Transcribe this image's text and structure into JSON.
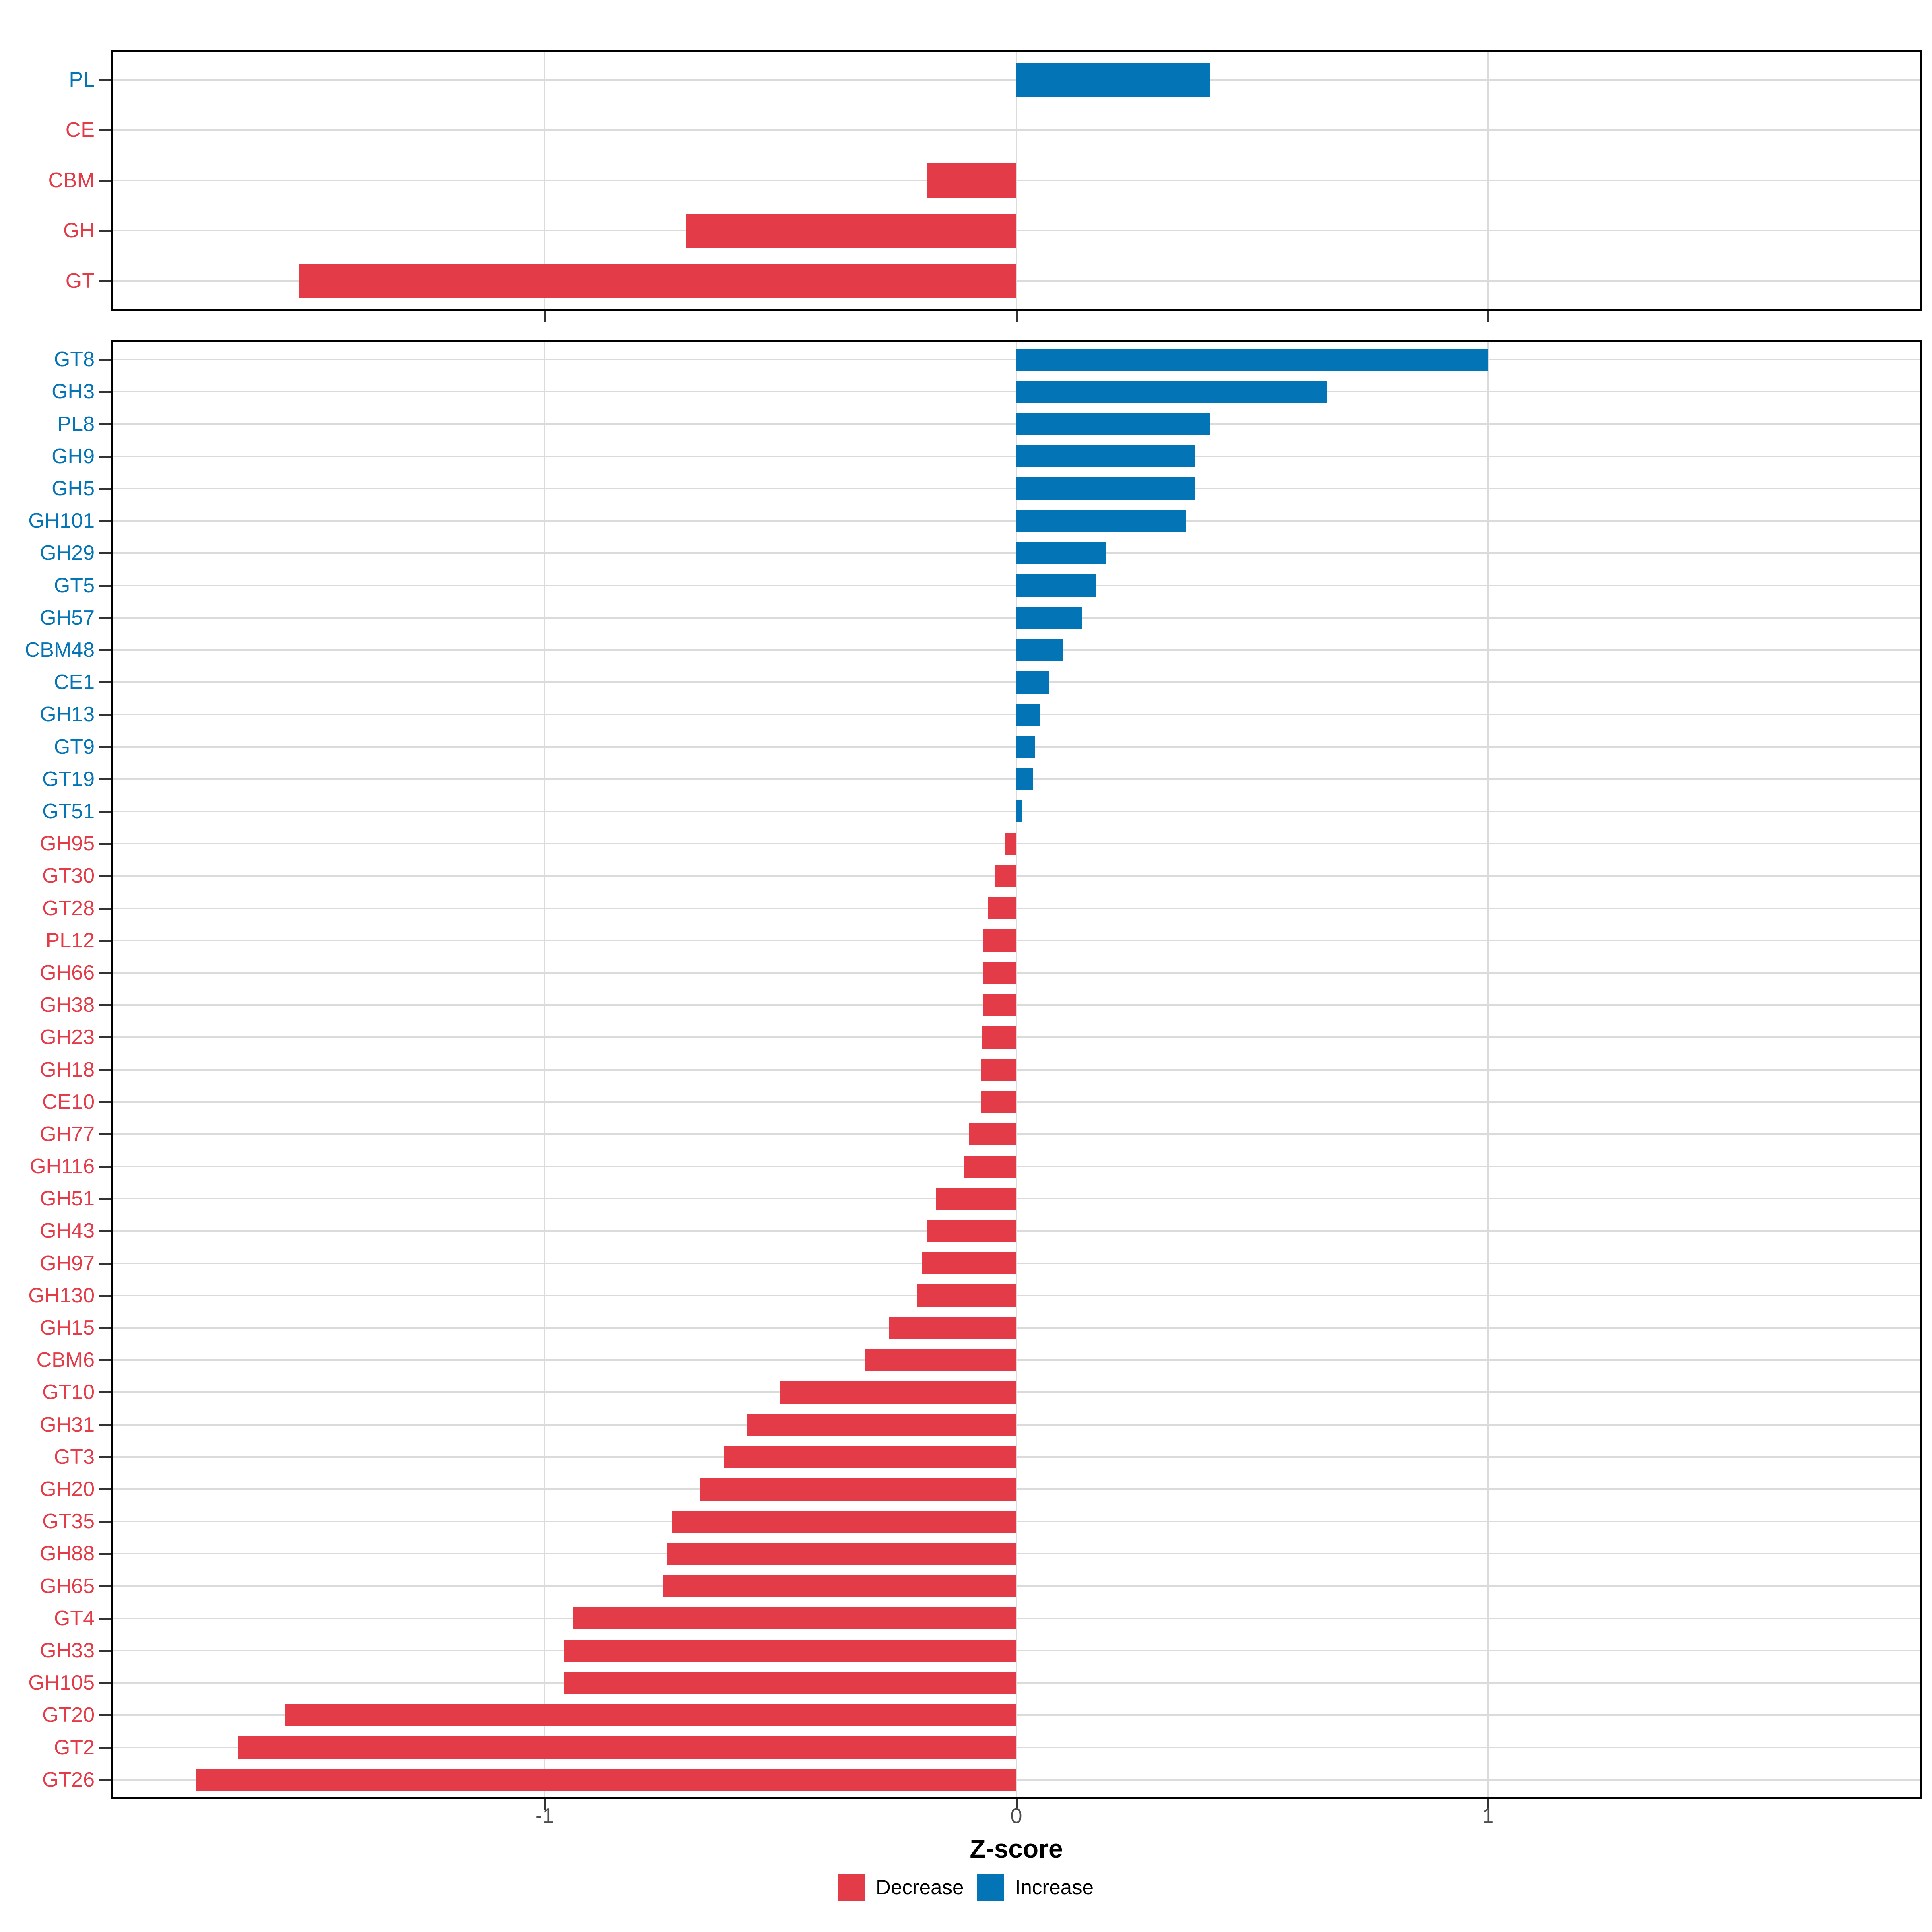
{
  "figure": {
    "xlabel": "Z-score",
    "x_tick_labels": [
      "-1",
      "0",
      "1"
    ],
    "legend": {
      "decrease": "Decrease",
      "increase": "Increase"
    },
    "colors": {
      "decrease": "#E43B49",
      "increase": "#0374B5",
      "grid": "#DBDBDB",
      "axis_tick": "#333333",
      "axis_tick_label": "#4D4D4D",
      "panel_border": "#000000",
      "background": "#FFFFFF",
      "axis_title": "#000000"
    }
  },
  "chart_data": [
    {
      "type": "bar",
      "orientation": "horizontal",
      "panel": "cazyme_class_summary",
      "title": "",
      "xlabel": "Z-score",
      "ylabel": "",
      "xlim": [
        -1.92,
        1.92
      ],
      "x_ticks": [
        -1,
        0,
        1
      ],
      "grid": "major-only",
      "legend_position": "bottom",
      "categories": [
        "PL",
        "CE",
        "CBM",
        "GH",
        "GT"
      ],
      "values": [
        0.41,
        0,
        -0.19,
        -0.7,
        -1.52
      ],
      "series_rule": "positive = Increase (blue), negative or zero = Decrease (red)"
    },
    {
      "type": "bar",
      "orientation": "horizontal",
      "panel": "cazyme_family_detail",
      "title": "",
      "xlabel": "Z-score",
      "ylabel": "",
      "xlim": [
        -1.92,
        1.92
      ],
      "x_ticks": [
        -1,
        0,
        1
      ],
      "grid": "major-only",
      "legend_position": "bottom",
      "categories": [
        "GT8",
        "GH3",
        "PL8",
        "GH9",
        "GH5",
        "GH101",
        "GH29",
        "GT5",
        "GH57",
        "CBM48",
        "CE1",
        "GH13",
        "GT9",
        "GT19",
        "GT51",
        "GH95",
        "GT30",
        "GT28",
        "PL12",
        "GH66",
        "GH38",
        "GH23",
        "GH18",
        "CE10",
        "GH77",
        "GH116",
        "GH51",
        "GH43",
        "GH97",
        "GH130",
        "GH15",
        "CBM6",
        "GT10",
        "GH31",
        "GT3",
        "GH20",
        "GT35",
        "GH88",
        "GH65",
        "GT4",
        "GH33",
        "GH105",
        "GT20",
        "GT2",
        "GT26"
      ],
      "values": [
        1.0,
        0.66,
        0.41,
        0.38,
        0.38,
        0.36,
        0.19,
        0.17,
        0.14,
        0.1,
        0.07,
        0.05,
        0.04,
        0.035,
        0.012,
        -0.025,
        -0.045,
        -0.06,
        -0.07,
        -0.07,
        -0.072,
        -0.073,
        -0.074,
        -0.075,
        -0.1,
        -0.11,
        -0.17,
        -0.19,
        -0.2,
        -0.21,
        -0.27,
        -0.32,
        -0.5,
        -0.57,
        -0.62,
        -0.67,
        -0.73,
        -0.74,
        -0.75,
        -0.94,
        -0.96,
        -0.96,
        -1.55,
        -1.65,
        -1.74
      ],
      "series_rule": "positive = Increase (blue), negative or zero = Decrease (red)"
    }
  ]
}
